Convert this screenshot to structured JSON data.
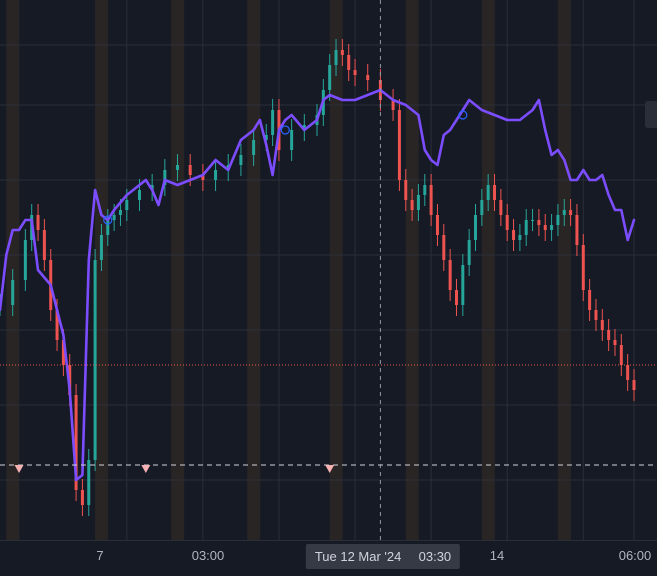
{
  "chart": {
    "crosshair_date": "Tue 12 Mar '24",
    "crosshair_time": "03:30",
    "time_ticks": [
      "7",
      "03:00",
      "14",
      "06:00"
    ]
  },
  "chart_data": {
    "type": "line",
    "x_unit": "bar index (time)",
    "x_range": [
      0,
      100
    ],
    "y_range": [
      0,
      100
    ],
    "candles_series": {
      "style": "candlestick",
      "up_color": "#26a69a",
      "down_color": "#ef5350",
      "close": [
        [
          0,
          45
        ],
        [
          2,
          50
        ],
        [
          4,
          58
        ],
        [
          5,
          63
        ],
        [
          6,
          60
        ],
        [
          7,
          54
        ],
        [
          8,
          44
        ],
        [
          9,
          38
        ],
        [
          10,
          33
        ],
        [
          11,
          27
        ],
        [
          12,
          8
        ],
        [
          13,
          5
        ],
        [
          14,
          14
        ],
        [
          15,
          54
        ],
        [
          16,
          59
        ],
        [
          17,
          62
        ],
        [
          18,
          63
        ],
        [
          19,
          64
        ],
        [
          20,
          66
        ],
        [
          22,
          68
        ],
        [
          24,
          69
        ],
        [
          26,
          72
        ],
        [
          28,
          73
        ],
        [
          30,
          71
        ],
        [
          32,
          70
        ],
        [
          34,
          72
        ],
        [
          36,
          73
        ],
        [
          38,
          75
        ],
        [
          40,
          78
        ],
        [
          42,
          79
        ],
        [
          43,
          84
        ],
        [
          44,
          76
        ],
        [
          46,
          80
        ],
        [
          48,
          81
        ],
        [
          50,
          83
        ],
        [
          51,
          88
        ],
        [
          52,
          93
        ],
        [
          53,
          96
        ],
        [
          54,
          95
        ],
        [
          55,
          92
        ],
        [
          56,
          91
        ],
        [
          58,
          90
        ],
        [
          60,
          86
        ],
        [
          62,
          84
        ],
        [
          63,
          70
        ],
        [
          64,
          66
        ],
        [
          65,
          64
        ],
        [
          66,
          67
        ],
        [
          67,
          69
        ],
        [
          68,
          63
        ],
        [
          69,
          59
        ],
        [
          70,
          54
        ],
        [
          71,
          48
        ],
        [
          72,
          45
        ],
        [
          73,
          53
        ],
        [
          74,
          58
        ],
        [
          75,
          63
        ],
        [
          76,
          66
        ],
        [
          77,
          69
        ],
        [
          78,
          66
        ],
        [
          79,
          63
        ],
        [
          80,
          60
        ],
        [
          81,
          58
        ],
        [
          82,
          59
        ],
        [
          83,
          62
        ],
        [
          84,
          62
        ],
        [
          85,
          61
        ],
        [
          86,
          60
        ],
        [
          87,
          61
        ],
        [
          88,
          63
        ],
        [
          89,
          64
        ],
        [
          90,
          63
        ],
        [
          91,
          57
        ],
        [
          92,
          48
        ],
        [
          93,
          44
        ],
        [
          94,
          42
        ],
        [
          95,
          40
        ],
        [
          96,
          38
        ],
        [
          97,
          37
        ],
        [
          98,
          33
        ],
        [
          99,
          30
        ],
        [
          100,
          28
        ]
      ]
    },
    "line_series": {
      "style": "line",
      "color": "#7c4dff",
      "values": [
        [
          0,
          44
        ],
        [
          1,
          55
        ],
        [
          2,
          60
        ],
        [
          3,
          60
        ],
        [
          4,
          62
        ],
        [
          5,
          62
        ],
        [
          6,
          52
        ],
        [
          8,
          49
        ],
        [
          10,
          39
        ],
        [
          11,
          28
        ],
        [
          12,
          10
        ],
        [
          13,
          11
        ],
        [
          14,
          54
        ],
        [
          15,
          68
        ],
        [
          16,
          63
        ],
        [
          17,
          62
        ],
        [
          18,
          64
        ],
        [
          20,
          67
        ],
        [
          22,
          69
        ],
        [
          23,
          70
        ],
        [
          24,
          68
        ],
        [
          25,
          65
        ],
        [
          26,
          70
        ],
        [
          28,
          69
        ],
        [
          30,
          70
        ],
        [
          32,
          71
        ],
        [
          34,
          74
        ],
        [
          36,
          72
        ],
        [
          38,
          78
        ],
        [
          40,
          80
        ],
        [
          41,
          82
        ],
        [
          42,
          77
        ],
        [
          43,
          71
        ],
        [
          44,
          80
        ],
        [
          45,
          82
        ],
        [
          46,
          83
        ],
        [
          48,
          80
        ],
        [
          50,
          82
        ],
        [
          51,
          86
        ],
        [
          52,
          87
        ],
        [
          54,
          86
        ],
        [
          56,
          86
        ],
        [
          58,
          87
        ],
        [
          60,
          88
        ],
        [
          62,
          86
        ],
        [
          64,
          85
        ],
        [
          66,
          83
        ],
        [
          67,
          76
        ],
        [
          68,
          74
        ],
        [
          69,
          73
        ],
        [
          70,
          79
        ],
        [
          71,
          80
        ],
        [
          72,
          82
        ],
        [
          74,
          86
        ],
        [
          76,
          84
        ],
        [
          78,
          83
        ],
        [
          80,
          82
        ],
        [
          82,
          82
        ],
        [
          84,
          84
        ],
        [
          85,
          86
        ],
        [
          86,
          80
        ],
        [
          87,
          75
        ],
        [
          88,
          76
        ],
        [
          89,
          74
        ],
        [
          90,
          70
        ],
        [
          91,
          70
        ],
        [
          92,
          72
        ],
        [
          93,
          70
        ],
        [
          94,
          70
        ],
        [
          95,
          71
        ],
        [
          96,
          67
        ],
        [
          97,
          64
        ],
        [
          98,
          64
        ],
        [
          99,
          58
        ],
        [
          100,
          62
        ]
      ]
    },
    "circle_markers": [
      [
        17,
        62
      ],
      [
        45,
        80
      ],
      [
        73,
        83
      ]
    ],
    "triangle_markers": [
      [
        3,
        0
      ],
      [
        23,
        0
      ],
      [
        52,
        0
      ]
    ],
    "highlight_bands": [
      1,
      15,
      27,
      39,
      52,
      64,
      76,
      88
    ],
    "vertical_gridlines": [
      20,
      32,
      44,
      56,
      68,
      80,
      92,
      100
    ],
    "horizontal_gridlines": [
      10,
      25,
      40,
      55,
      70,
      85,
      97
    ],
    "dotted_level": 33,
    "dashed_level": 13,
    "crosshair_x": 60,
    "colors": {
      "background": "#161a25",
      "grid": "#2a2e39",
      "band": "#3a2f26",
      "dotted_level": "#ef5350",
      "crosshair": "#9598a1",
      "marker": "#f7b1b3"
    }
  }
}
